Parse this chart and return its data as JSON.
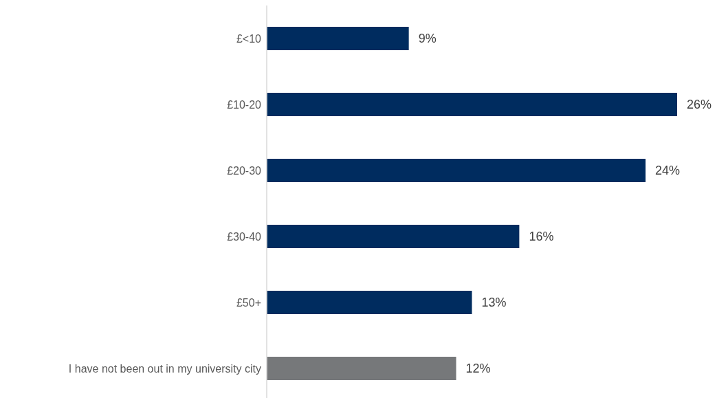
{
  "chart_data": {
    "type": "bar",
    "orientation": "horizontal",
    "categories": [
      "£<10",
      "£10-20",
      "£20-30",
      "£30-40",
      "£50+",
      "I have not been out in my university city"
    ],
    "values": [
      9,
      26,
      24,
      16,
      13,
      12
    ],
    "colors": [
      "#002c5f",
      "#002c5f",
      "#002c5f",
      "#002c5f",
      "#002c5f",
      "#76787a"
    ],
    "value_labels": [
      "9%",
      "26%",
      "24%",
      "16%",
      "13%",
      "12%"
    ]
  }
}
